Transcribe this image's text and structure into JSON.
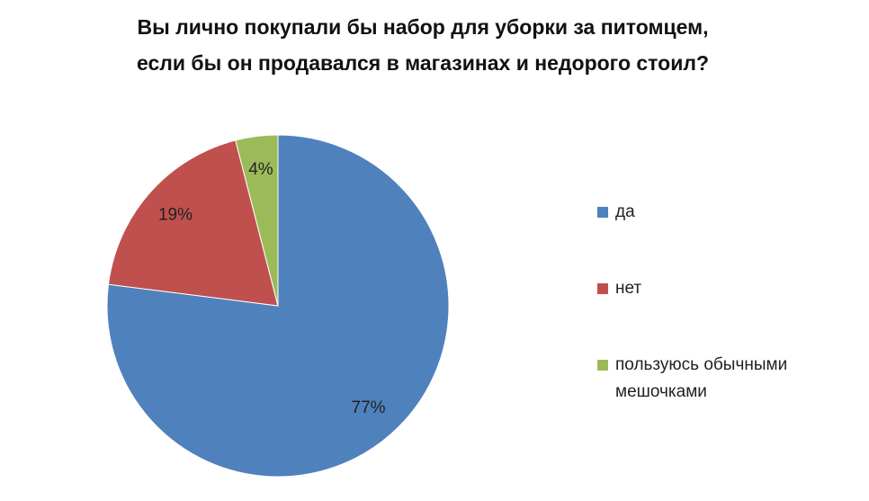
{
  "chart_data": {
    "type": "pie",
    "title": [
      "Вы лично покупали бы набор для уборки за питомцем,",
      "если бы он продавался в магазинах  и недорого стоил?"
    ],
    "categories": [
      "да",
      "нет",
      "пользуюсь обычными мешочками"
    ],
    "values": [
      77,
      19,
      4
    ],
    "value_labels": [
      "77%",
      "19%",
      "4%"
    ],
    "colors": [
      "#4f81bd",
      "#c0504d",
      "#9bbb59"
    ],
    "legend": "right"
  }
}
